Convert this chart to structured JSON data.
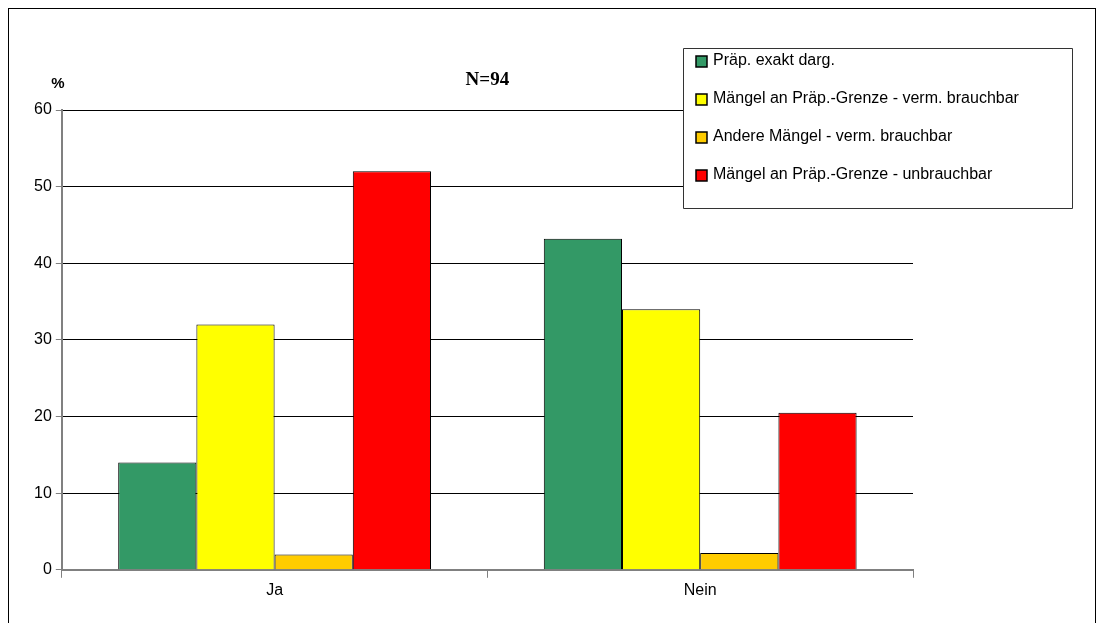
{
  "chart_data": {
    "type": "bar",
    "title": "N=94",
    "ylabel": "%",
    "categories": [
      "Ja",
      "Nein"
    ],
    "series": [
      {
        "name": "Präp. exakt darg.",
        "color": "#339966",
        "values": [
          14,
          43.2
        ]
      },
      {
        "name": "Mängel an Präp.-Grenze - verm. brauchbar",
        "color": "#ffff00",
        "values": [
          32,
          34
        ]
      },
      {
        "name": "Andere Mängel - verm. brauchbar",
        "color": "#ffcc00",
        "values": [
          2,
          2.2
        ]
      },
      {
        "name": "Mängel an Präp.-Grenze - unbrauchbar",
        "color": "#ff0000",
        "values": [
          52,
          20.5
        ]
      }
    ],
    "ylim": [
      0,
      60
    ],
    "yticks": [
      0,
      10,
      20,
      30,
      40,
      50,
      60
    ],
    "grid": "y",
    "legend": "top right"
  }
}
